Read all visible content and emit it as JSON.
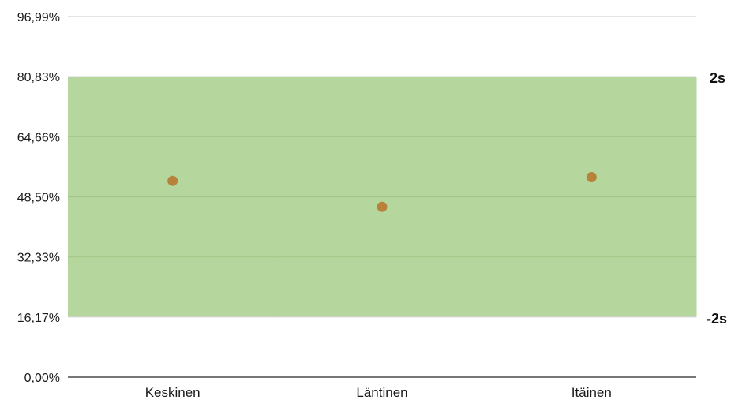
{
  "chart_data": {
    "type": "scatter",
    "title": "",
    "xlabel": "",
    "ylabel": "",
    "categories": [
      "Keskinen",
      "Läntinen",
      "Itäinen"
    ],
    "values": [
      52.8,
      45.8,
      53.8
    ],
    "ylim": [
      0,
      96.99
    ],
    "y_ticks": [
      {
        "value": 0,
        "label": "0,00%"
      },
      {
        "value": 16.17,
        "label": "16,17%"
      },
      {
        "value": 32.33,
        "label": "32,33%"
      },
      {
        "value": 48.5,
        "label": "48,50%"
      },
      {
        "value": 64.66,
        "label": "64,66%"
      },
      {
        "value": 80.83,
        "label": "80,83%"
      },
      {
        "value": 96.99,
        "label": "96,99%"
      }
    ],
    "band": {
      "upper": 80.83,
      "lower": 16.17,
      "upper_label": "2s",
      "lower_label": "-2s",
      "color": "#b5d69c"
    },
    "point_color": "#b8823a",
    "grid": true,
    "legend": "none"
  }
}
